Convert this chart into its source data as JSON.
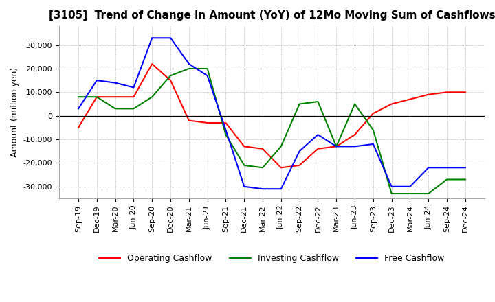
{
  "title": "[3105]  Trend of Change in Amount (YoY) of 12Mo Moving Sum of Cashflows",
  "ylabel": "Amount (million yen)",
  "ylim": [
    -35000,
    38000
  ],
  "yticks": [
    -30000,
    -20000,
    -10000,
    0,
    10000,
    20000,
    30000
  ],
  "x_labels": [
    "Sep-19",
    "Dec-19",
    "Mar-20",
    "Jun-20",
    "Sep-20",
    "Dec-20",
    "Mar-21",
    "Jun-21",
    "Sep-21",
    "Dec-21",
    "Mar-22",
    "Jun-22",
    "Sep-22",
    "Dec-22",
    "Mar-23",
    "Jun-23",
    "Sep-23",
    "Dec-23",
    "Mar-24",
    "Jun-24",
    "Sep-24",
    "Dec-24"
  ],
  "operating": [
    -5000,
    8000,
    8000,
    8000,
    22000,
    15000,
    -2000,
    -3000,
    -3000,
    -13000,
    -14000,
    -22000,
    -21000,
    -14000,
    -13000,
    -8000,
    1000,
    5000,
    7000,
    9000,
    10000,
    10000
  ],
  "investing": [
    8000,
    8000,
    3000,
    3000,
    8000,
    17000,
    20000,
    20000,
    -8000,
    -21000,
    -22000,
    -13000,
    5000,
    6000,
    -13000,
    5000,
    -6000,
    -33000,
    -33000,
    -33000,
    -27000,
    -27000
  ],
  "free": [
    3000,
    15000,
    14000,
    12000,
    33000,
    33000,
    22000,
    17000,
    -6000,
    -30000,
    -31000,
    -31000,
    -15000,
    -8000,
    -13000,
    -13000,
    -12000,
    -30000,
    -30000,
    -22000,
    -22000,
    -22000
  ],
  "op_color": "#ff0000",
  "inv_color": "#008000",
  "free_color": "#0000ff",
  "bg_color": "#ffffff",
  "grid_color": "#aaaaaa",
  "title_fontsize": 11,
  "label_fontsize": 9,
  "tick_fontsize": 8,
  "legend_fontsize": 9
}
